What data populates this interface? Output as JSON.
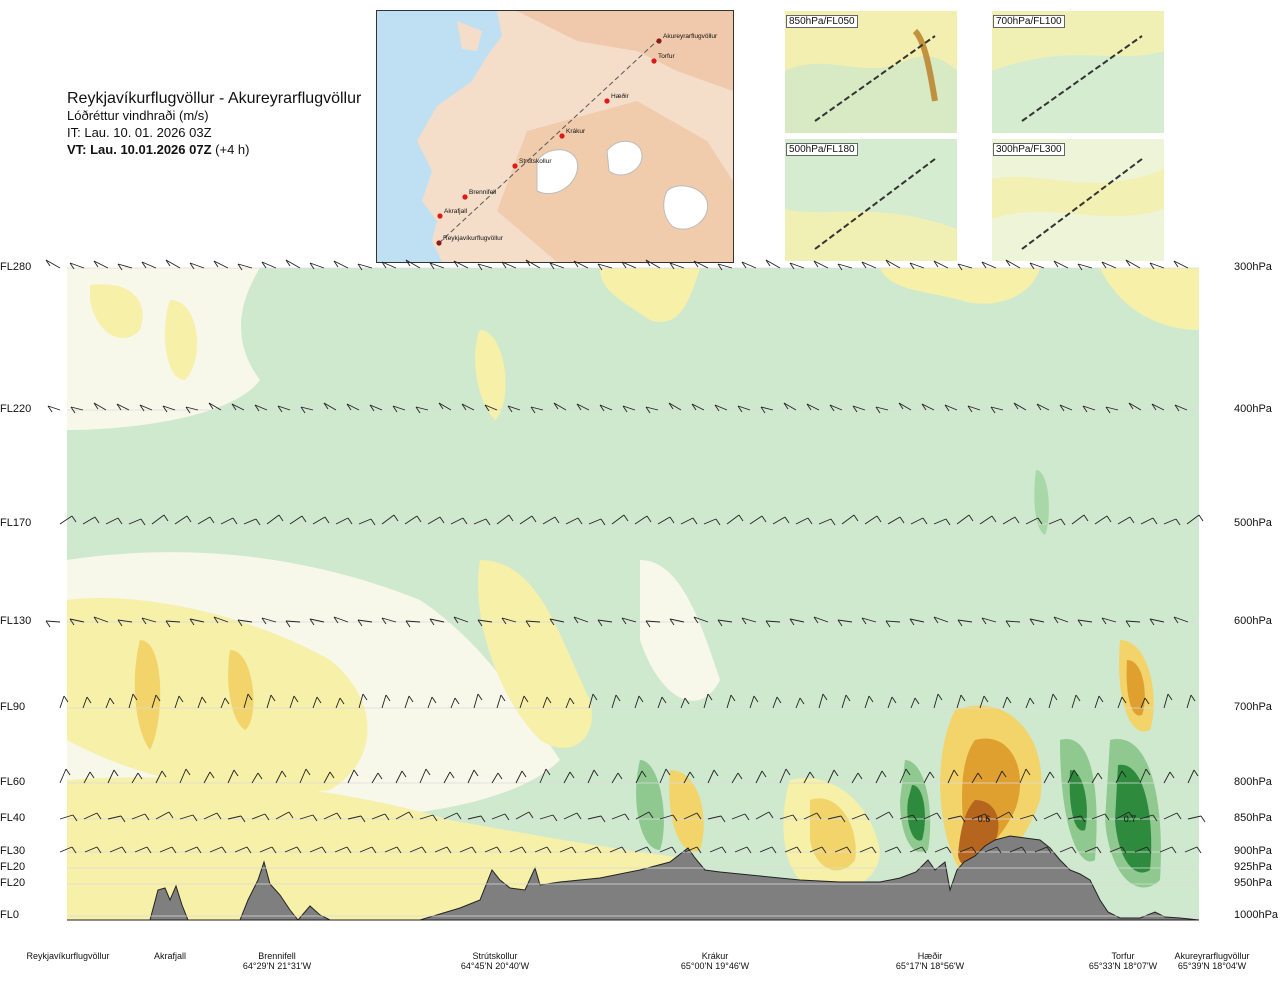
{
  "title": {
    "route": "Reykjavíkurflugvöllur - Akureyrarflugvöllur",
    "parameter": "Lóðréttur vindhraði (m/s)",
    "initial_time": "IT: Lau. 10. 01. 2026 03Z",
    "valid_time_bold": "VT: Lau. 10.01.2026 07Z",
    "valid_time_suffix": " (+4 h)"
  },
  "overview_map": {
    "points": [
      {
        "name": "Akureyrarflugvöllur"
      },
      {
        "name": "Torfur"
      },
      {
        "name": "Hæðir"
      },
      {
        "name": "Krákur"
      },
      {
        "name": "Strútskollur"
      },
      {
        "name": "Brennifell"
      },
      {
        "name": "Akrafjall"
      },
      {
        "name": "Reykjavíkurflugvöllur"
      }
    ]
  },
  "inset_maps": [
    {
      "label": "850hPa/FL050"
    },
    {
      "label": "700hPa/FL100"
    },
    {
      "label": "500hPa/FL180"
    },
    {
      "label": "300hPa/FL300"
    }
  ],
  "chart_data": {
    "type": "cross-section",
    "y_axis_left": [
      "FL280",
      "FL220",
      "FL170",
      "FL130",
      "FL90",
      "FL60",
      "FL40",
      "FL30",
      "FL20",
      "FL20",
      "FL0"
    ],
    "y_axis_right": [
      "300hPa",
      "400hPa",
      "500hPa",
      "600hPa",
      "700hPa",
      "800hPa",
      "850hPa",
      "900hPa",
      "925hPa",
      "950hPa",
      "1000hPa"
    ],
    "pressure_levels_hpa": [
      300,
      400,
      500,
      600,
      700,
      800,
      850,
      900,
      925,
      950,
      1000
    ],
    "field_annotations": [
      "0.6",
      "0.7"
    ],
    "locations": [
      {
        "name": "Reykjavíkurflugvöllur",
        "coord": ""
      },
      {
        "name": "Akrafjall",
        "coord": ""
      },
      {
        "name": "Brennifell",
        "coord": "64°29'N 21°31'W"
      },
      {
        "name": "Strútskollur",
        "coord": "64°45'N 20°40'W"
      },
      {
        "name": "Krákur",
        "coord": "65°00'N 19°46'W"
      },
      {
        "name": "Hæðir",
        "coord": "65°17'N 18°56'W"
      },
      {
        "name": "Torfur",
        "coord": "65°33'N 18°07'W"
      },
      {
        "name": "Akureyrarflugvöllur",
        "coord": "65°39'N 18°04'W"
      }
    ],
    "colors": {
      "strong_sink": "#c8e6c9",
      "weak_sink": "#e8f5e9",
      "neutral": "#f7f7ea",
      "weak_rise": "#f6f0a8",
      "rise": "#f2d46a",
      "strong_rise": "#e0a030",
      "max_rise": "#b5651d",
      "max_sink": "#2e8b3e",
      "terrain": "#7f7f7f"
    }
  }
}
